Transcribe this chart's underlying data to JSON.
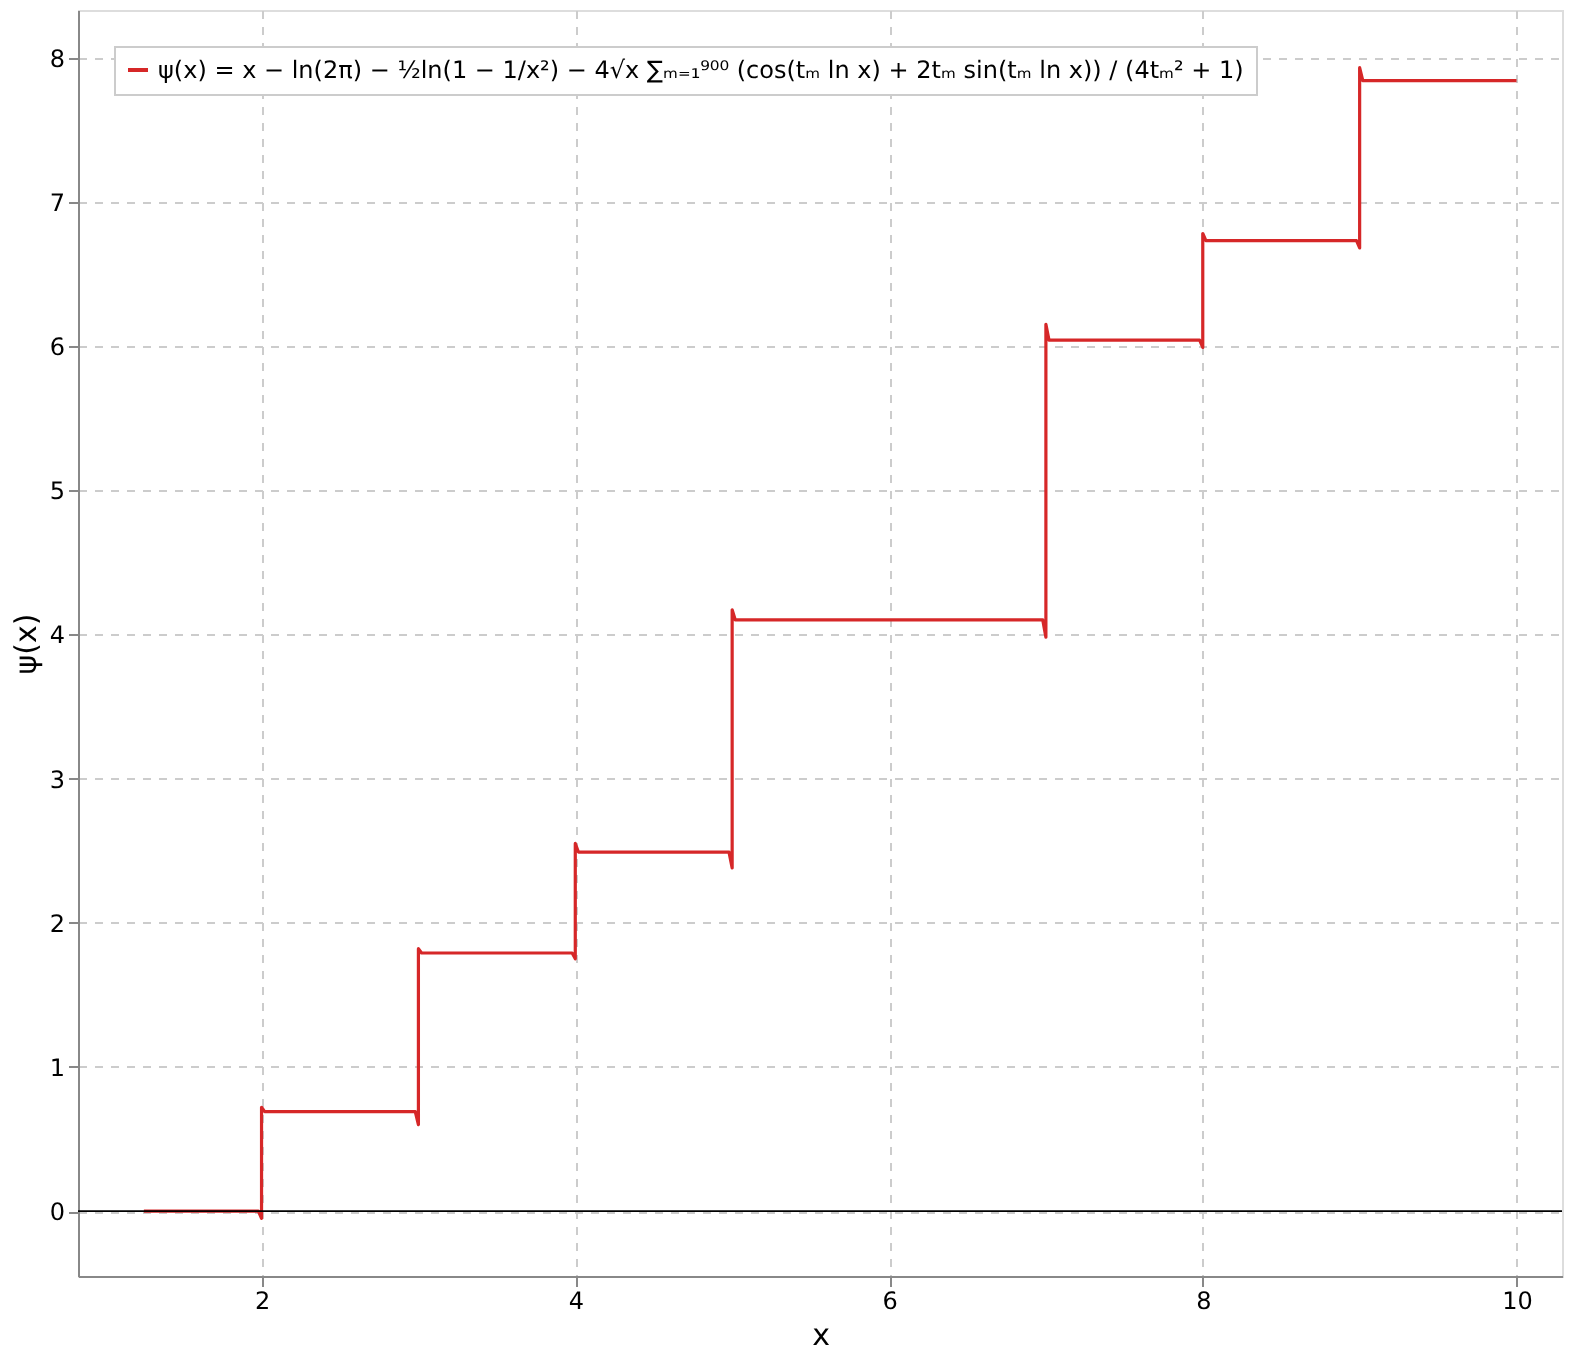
{
  "chart_data": {
    "type": "line",
    "xlabel": "x",
    "ylabel": "ψ(x)",
    "x": [
      1.25,
      1.98,
      2,
      2,
      2.02,
      2.98,
      3,
      3,
      3.02,
      3.98,
      4,
      4,
      4.02,
      4.98,
      5,
      5,
      5.02,
      6.98,
      7,
      7,
      7.02,
      7.98,
      8,
      8,
      8.02,
      8.98,
      9,
      9,
      9.02,
      10
    ],
    "series": [
      {
        "name": "ψ(x) = x − ln(2π) − ½ln(1 − 1/x²) − 4√x ∑ₘ₌₁⁹⁰⁰ (cos(tₘ ln x) + 2tₘ sin(tₘ ln x)) / (4tₘ² + 1)",
        "color": "#d62728",
        "values": [
          0,
          0,
          -0.05,
          0.72,
          0.69,
          0.69,
          0.6,
          1.82,
          1.79,
          1.79,
          1.75,
          2.55,
          2.49,
          2.49,
          2.38,
          4.17,
          4.1,
          4.1,
          3.98,
          6.15,
          6.04,
          6.04,
          5.99,
          6.78,
          6.73,
          6.73,
          6.68,
          7.93,
          7.84,
          7.84
        ]
      }
    ],
    "xlim": [
      0.83,
      10.29
    ],
    "ylim": [
      -0.45,
      8.33
    ],
    "xticks": [
      2,
      4,
      6,
      8,
      10
    ],
    "yticks": [
      0,
      1,
      2,
      3,
      4,
      5,
      6,
      7,
      8
    ],
    "ref_lines": [
      {
        "axis": "y",
        "value": 0,
        "color": "#000000"
      }
    ],
    "grid": true,
    "legend": "top left",
    "marker": "none",
    "line_style": "solid"
  }
}
